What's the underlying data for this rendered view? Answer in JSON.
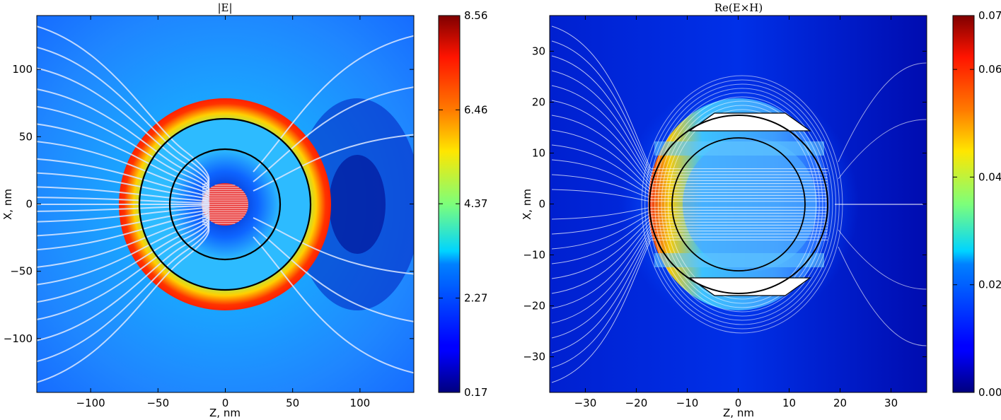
{
  "chart_data": [
    {
      "type": "heatmap",
      "title": "|E|",
      "xlabel": "Z, nm",
      "ylabel": "X, nm",
      "xlim": [
        -140,
        140
      ],
      "ylim": [
        -140,
        140
      ],
      "xticks": [
        -100,
        -50,
        0,
        50,
        100
      ],
      "xtick_labels": [
        "−100",
        "−50",
        "0",
        "50",
        "100"
      ],
      "yticks": [
        100,
        50,
        0,
        -50,
        -100
      ],
      "ytick_labels": [
        "100",
        "50",
        "0",
        "−50",
        "−100"
      ],
      "colormap": "jet",
      "colorbar": {
        "min": 0.17,
        "max": 8.56,
        "ticks": [
          8.56,
          6.46,
          4.37,
          2.27,
          0.17
        ],
        "tick_labels": [
          "8.56",
          "6.46",
          "4.37",
          "2.27",
          "0.17"
        ]
      },
      "circles_radius": [
        64,
        41,
        16
      ],
      "streamlines": "white",
      "grid": false
    },
    {
      "type": "heatmap",
      "title": "Re(E×H)",
      "xlabel": "Z, nm",
      "ylabel": "X, nm",
      "xlim": [
        -37,
        37
      ],
      "ylim": [
        -37,
        37
      ],
      "xticks": [
        -30,
        -20,
        -10,
        0,
        10,
        20,
        30
      ],
      "xtick_labels": [
        "−30",
        "−20",
        "−10",
        "0",
        "10",
        "20",
        "30"
      ],
      "yticks": [
        30,
        20,
        10,
        0,
        -10,
        -20,
        -30
      ],
      "ytick_labels": [
        "30",
        "20",
        "10",
        "0",
        "−10",
        "−20",
        "−30"
      ],
      "colormap": "jet",
      "colorbar": {
        "min": 0.0,
        "max": 0.07,
        "ticks": [
          0.07,
          0.06,
          0.04,
          0.02,
          0.0
        ],
        "tick_labels": [
          "0.07",
          "0.06",
          "0.04",
          "0.02",
          "0.00"
        ]
      },
      "circles_radius": [
        17.5,
        13
      ],
      "streamlines": "white",
      "grid": false
    }
  ]
}
